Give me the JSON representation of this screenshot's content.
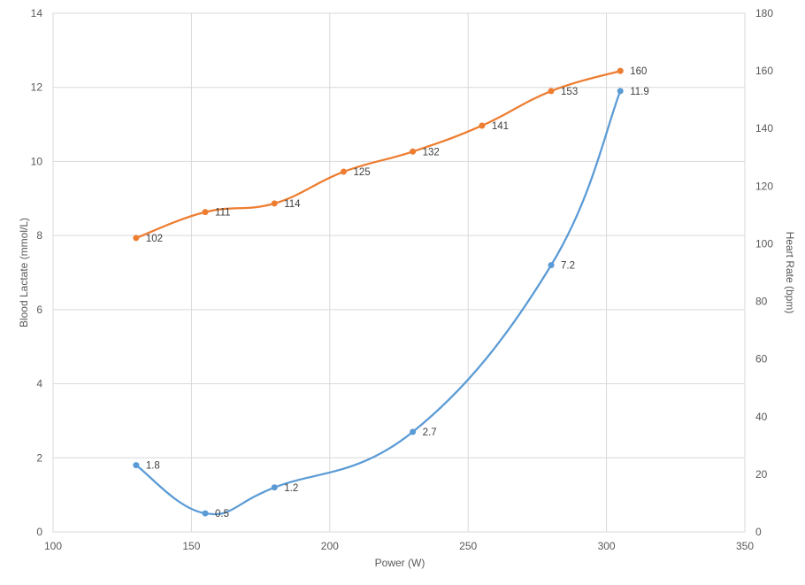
{
  "chart_data": {
    "type": "line",
    "title": "",
    "xlabel": "Power (W)",
    "ylabel": "Blood Lactate (mmol/L)",
    "y2label": "Heart Rate (bpm)",
    "xlim": [
      100,
      350
    ],
    "ylim": [
      0,
      14
    ],
    "y2lim": [
      0,
      180
    ],
    "x_ticks": [
      100,
      150,
      200,
      250,
      300,
      350
    ],
    "y_ticks": [
      0,
      2,
      4,
      6,
      8,
      10,
      12,
      14
    ],
    "y2_ticks": [
      0,
      20,
      40,
      60,
      80,
      100,
      120,
      140,
      160,
      180
    ],
    "grid": true,
    "smooth": true,
    "legend": "none",
    "series": [
      {
        "axis": "left",
        "color": "#5b9bd5",
        "x": [
          130,
          155,
          180,
          230,
          280,
          305
        ],
        "y": [
          1.8,
          0.5,
          1.2,
          2.7,
          7.2,
          11.9
        ],
        "labels": [
          "1.8",
          "0.5",
          "1.2",
          "2.7",
          "7.2",
          "11.9"
        ]
      },
      {
        "axis": "right",
        "color": "#ed7d31",
        "x": [
          130,
          155,
          180,
          205,
          230,
          255,
          280,
          305
        ],
        "y": [
          102,
          111,
          114,
          125,
          132,
          141,
          153,
          160
        ],
        "labels": [
          "102",
          "111",
          "114",
          "125",
          "132",
          "141",
          "153",
          "160"
        ]
      }
    ]
  }
}
